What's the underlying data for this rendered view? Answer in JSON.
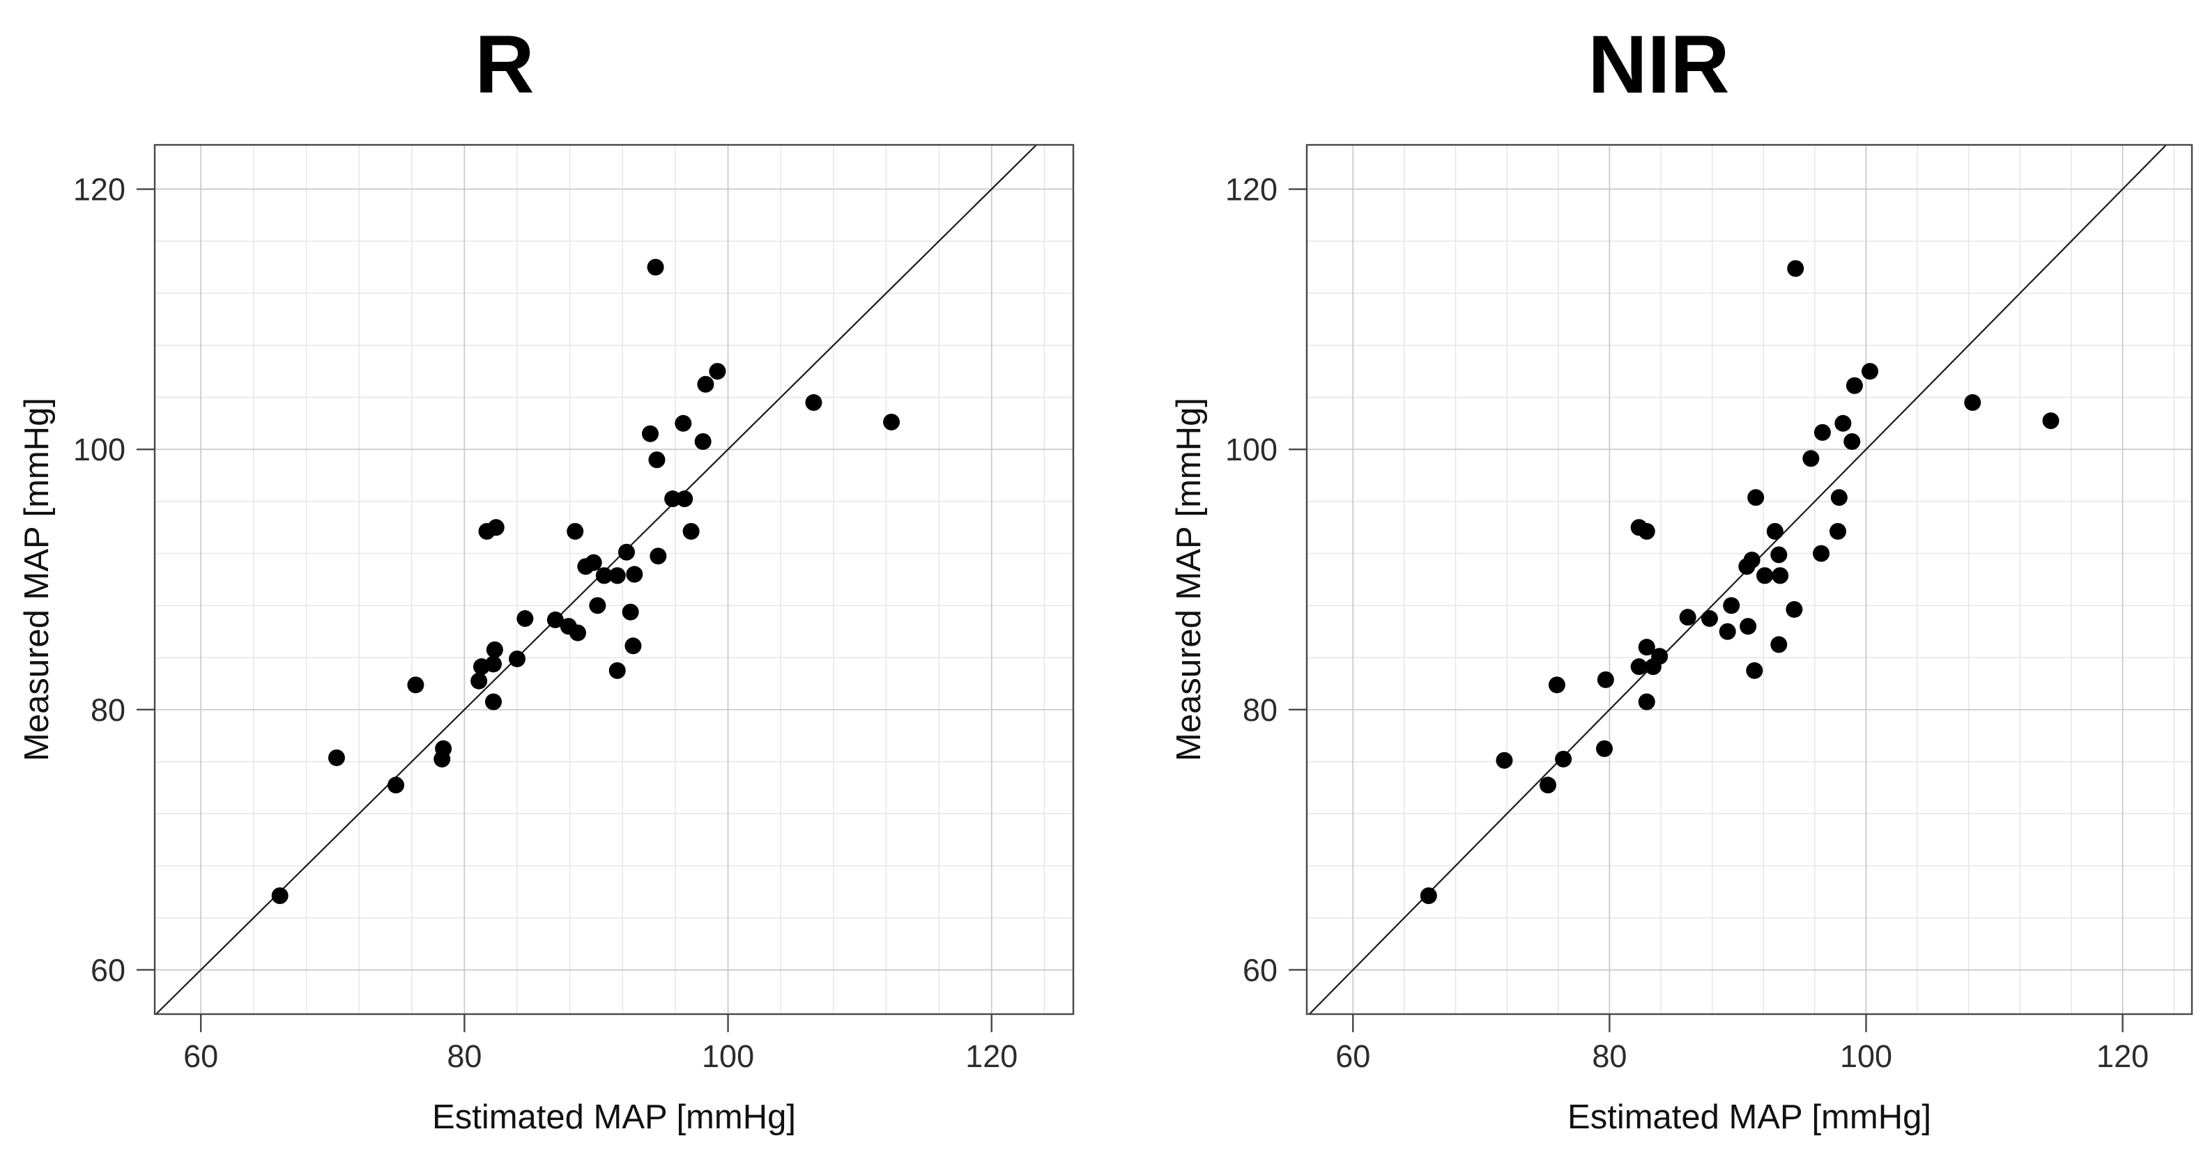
{
  "figure": {
    "background": "#ffffff",
    "colors": {
      "point": "#000000",
      "identity_line": "#1a1a1a",
      "frame": "#474747",
      "tick": "#474747",
      "grid_minor": "#e6e6e6",
      "grid_major": "#c9c9c9",
      "tick_text": "#2b2b2b",
      "title_text": "#000000"
    }
  },
  "chart_data": [
    {
      "type": "scatter",
      "title": "R",
      "xlabel": "Estimated MAP [mmHg]",
      "ylabel": "Measured MAP [mmHg]",
      "xlim": [
        56.5,
        126.2
      ],
      "ylim": [
        56.6,
        123.4
      ],
      "xticks": [
        60,
        80,
        100,
        120
      ],
      "yticks": [
        60,
        80,
        100,
        120
      ],
      "grid": true,
      "minor_grid_step": 4,
      "legend": null,
      "identity_line": true,
      "marker": "filled-circle",
      "points": [
        [
          94.5,
          114.0
        ],
        [
          99.2,
          106.0
        ],
        [
          98.3,
          105.0
        ],
        [
          106.5,
          103.6
        ],
        [
          112.4,
          102.1
        ],
        [
          96.6,
          102.0
        ],
        [
          94.1,
          101.2
        ],
        [
          98.1,
          100.6
        ],
        [
          94.6,
          99.2
        ],
        [
          95.8,
          96.2
        ],
        [
          96.7,
          96.2
        ],
        [
          97.2,
          93.7
        ],
        [
          88.4,
          93.7
        ],
        [
          81.7,
          93.7
        ],
        [
          82.4,
          94.0
        ],
        [
          89.2,
          91.0
        ],
        [
          89.8,
          91.3
        ],
        [
          92.3,
          92.1
        ],
        [
          94.7,
          91.8
        ],
        [
          90.6,
          90.3
        ],
        [
          91.6,
          90.3
        ],
        [
          92.9,
          90.4
        ],
        [
          90.1,
          88.0
        ],
        [
          92.6,
          87.5
        ],
        [
          84.6,
          87.0
        ],
        [
          86.9,
          86.9
        ],
        [
          87.9,
          86.4
        ],
        [
          88.6,
          85.9
        ],
        [
          92.8,
          84.9
        ],
        [
          91.6,
          83.0
        ],
        [
          82.3,
          84.6
        ],
        [
          84.0,
          83.9
        ],
        [
          81.3,
          83.3
        ],
        [
          82.2,
          83.5
        ],
        [
          81.1,
          82.2
        ],
        [
          76.3,
          81.9
        ],
        [
          82.2,
          80.6
        ],
        [
          78.4,
          77.0
        ],
        [
          78.3,
          76.2
        ],
        [
          70.3,
          76.3
        ],
        [
          74.8,
          74.2
        ],
        [
          66.0,
          65.7
        ]
      ]
    },
    {
      "type": "scatter",
      "title": "NIR",
      "xlabel": "Estimated MAP [mmHg]",
      "ylabel": "Measured MAP [mmHg]",
      "xlim": [
        56.4,
        125.4
      ],
      "ylim": [
        56.6,
        123.4
      ],
      "xticks": [
        60,
        80,
        100,
        120
      ],
      "yticks": [
        60,
        80,
        100,
        120
      ],
      "grid": true,
      "minor_grid_step": 4,
      "legend": null,
      "identity_line": true,
      "marker": "filled-circle",
      "points": [
        [
          94.5,
          113.9
        ],
        [
          100.3,
          106.0
        ],
        [
          99.1,
          104.9
        ],
        [
          108.3,
          103.6
        ],
        [
          114.4,
          102.2
        ],
        [
          98.2,
          102.0
        ],
        [
          96.6,
          101.3
        ],
        [
          98.9,
          100.6
        ],
        [
          95.7,
          99.3
        ],
        [
          91.4,
          96.3
        ],
        [
          97.9,
          96.3
        ],
        [
          92.9,
          93.7
        ],
        [
          97.8,
          93.7
        ],
        [
          82.3,
          94.0
        ],
        [
          82.9,
          93.7
        ],
        [
          93.2,
          91.9
        ],
        [
          96.5,
          92.0
        ],
        [
          90.7,
          91.0
        ],
        [
          91.1,
          91.5
        ],
        [
          92.1,
          90.3
        ],
        [
          93.3,
          90.3
        ],
        [
          94.4,
          87.7
        ],
        [
          89.5,
          88.0
        ],
        [
          86.1,
          87.1
        ],
        [
          87.8,
          87.0
        ],
        [
          89.2,
          86.0
        ],
        [
          90.8,
          86.4
        ],
        [
          93.2,
          85.0
        ],
        [
          91.3,
          83.0
        ],
        [
          82.9,
          84.8
        ],
        [
          83.9,
          84.1
        ],
        [
          83.4,
          83.3
        ],
        [
          82.3,
          83.3
        ],
        [
          79.7,
          82.3
        ],
        [
          75.9,
          81.9
        ],
        [
          82.9,
          80.6
        ],
        [
          79.6,
          77.0
        ],
        [
          76.4,
          76.2
        ],
        [
          71.8,
          76.1
        ],
        [
          75.2,
          74.2
        ],
        [
          65.9,
          65.7
        ]
      ]
    }
  ]
}
